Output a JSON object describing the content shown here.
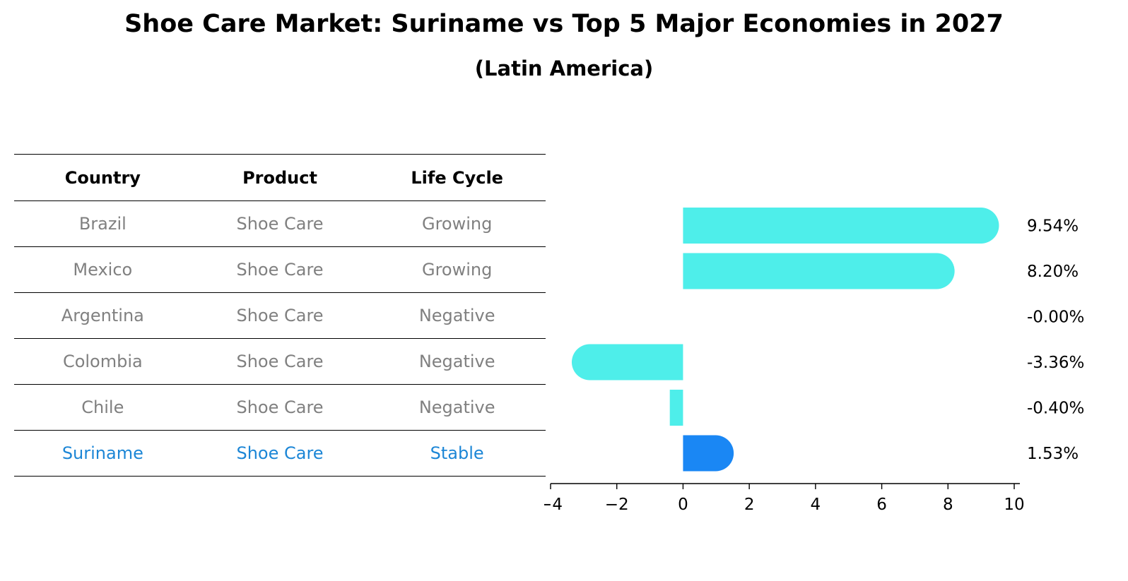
{
  "title": "Shoe Care Market: Suriname vs Top 5 Major Economies in 2027",
  "subtitle": "(Latin America)",
  "table": {
    "headers": [
      "Country",
      "Product",
      "Life Cycle"
    ],
    "rows": [
      {
        "country": "Brazil",
        "product": "Shoe Care",
        "life_cycle": "Growing"
      },
      {
        "country": "Mexico",
        "product": "Shoe Care",
        "life_cycle": "Growing"
      },
      {
        "country": "Argentina",
        "product": "Shoe Care",
        "life_cycle": "Negative"
      },
      {
        "country": "Colombia",
        "product": "Shoe Care",
        "life_cycle": "Negative"
      },
      {
        "country": "Chile",
        "product": "Shoe Care",
        "life_cycle": "Negative"
      },
      {
        "country": "Suriname",
        "product": "Shoe Care",
        "life_cycle": "Stable"
      }
    ],
    "text_color": "#808080",
    "highlight_color": "#1c86d6"
  },
  "chart_data": {
    "type": "bar",
    "orientation": "horizontal",
    "categories": [
      "Brazil",
      "Mexico",
      "Argentina",
      "Colombia",
      "Chile",
      "Suriname"
    ],
    "values": [
      9.54,
      8.2,
      -0.0,
      -3.36,
      -0.4,
      1.53
    ],
    "value_labels": [
      "9.54%",
      "8.20%",
      "-0.00%",
      "-3.36%",
      "-0.40%",
      "1.53%"
    ],
    "xlim": [
      -4,
      10
    ],
    "xticks": [
      -4,
      -2,
      0,
      2,
      4,
      6,
      8,
      10
    ],
    "xtick_labels": [
      "−4",
      "−2",
      "0",
      "2",
      "4",
      "6",
      "8",
      "10"
    ],
    "bar_color": "#4eeeea",
    "highlight_color": "#1a87f4",
    "highlight_category": "Suriname",
    "grid": false
  }
}
